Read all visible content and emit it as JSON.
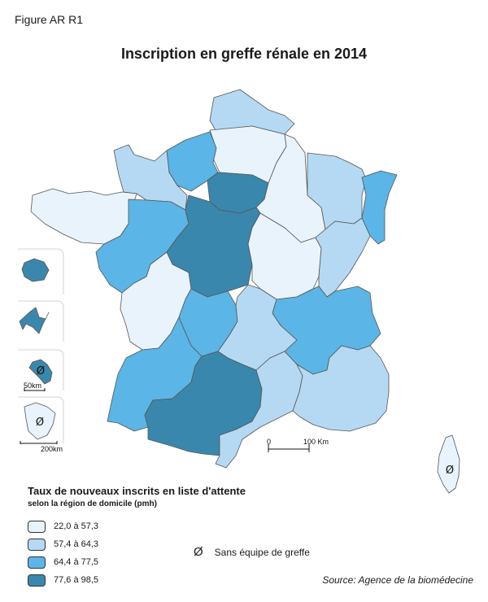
{
  "figure_label": "Figure AR R1",
  "title": "Inscription en greffe rénale en 2014",
  "legend": {
    "title": "Taux de nouveaux inscrits en liste d'attente",
    "subtitle": "selon la région de domicile (pmh)",
    "classes": [
      {
        "label": "22,0 à 57,3",
        "color": "#e8f3fb"
      },
      {
        "label": "57,4 à 64,3",
        "color": "#b5d9f2"
      },
      {
        "label": "64,4 à 77,5",
        "color": "#5bb5e6"
      },
      {
        "label": "77,6 à 98,5",
        "color": "#3a87ad"
      }
    ]
  },
  "no_graft": {
    "symbol": "Ø",
    "label": "Sans équipe de greffe"
  },
  "scale": {
    "zero": "0",
    "distance": "100 Km"
  },
  "inset_scales": {
    "small": "50km",
    "large": "200km"
  },
  "source": "Source: Agence de la biomédecine",
  "regions": [
    {
      "name": "Nord-Pas-de-Calais",
      "class": 1
    },
    {
      "name": "Picardie",
      "class": 0
    },
    {
      "name": "Haute-Normandie",
      "class": 2
    },
    {
      "name": "Basse-Normandie",
      "class": 1
    },
    {
      "name": "Île-de-France",
      "class": 3
    },
    {
      "name": "Champagne-Ardenne",
      "class": 0
    },
    {
      "name": "Lorraine",
      "class": 1
    },
    {
      "name": "Alsace",
      "class": 2
    },
    {
      "name": "Bretagne",
      "class": 0
    },
    {
      "name": "Pays de la Loire",
      "class": 2
    },
    {
      "name": "Centre",
      "class": 3
    },
    {
      "name": "Bourgogne",
      "class": 0
    },
    {
      "name": "Franche-Comté",
      "class": 1
    },
    {
      "name": "Poitou-Charentes",
      "class": 0
    },
    {
      "name": "Limousin",
      "class": 2
    },
    {
      "name": "Auvergne",
      "class": 1
    },
    {
      "name": "Rhône-Alpes",
      "class": 2
    },
    {
      "name": "Aquitaine",
      "class": 2
    },
    {
      "name": "Midi-Pyrénées",
      "class": 3
    },
    {
      "name": "Languedoc-Roussillon",
      "class": 1
    },
    {
      "name": "Provence-Alpes-Côte d'Azur",
      "class": 1
    },
    {
      "name": "Corse",
      "class": 0,
      "no_graft": true
    },
    {
      "name": "La Réunion",
      "class": 3
    },
    {
      "name": "Guadeloupe",
      "class": 3
    },
    {
      "name": "Martinique",
      "class": 3,
      "no_graft": true
    },
    {
      "name": "Guyane",
      "class": 0,
      "no_graft": true
    }
  ]
}
